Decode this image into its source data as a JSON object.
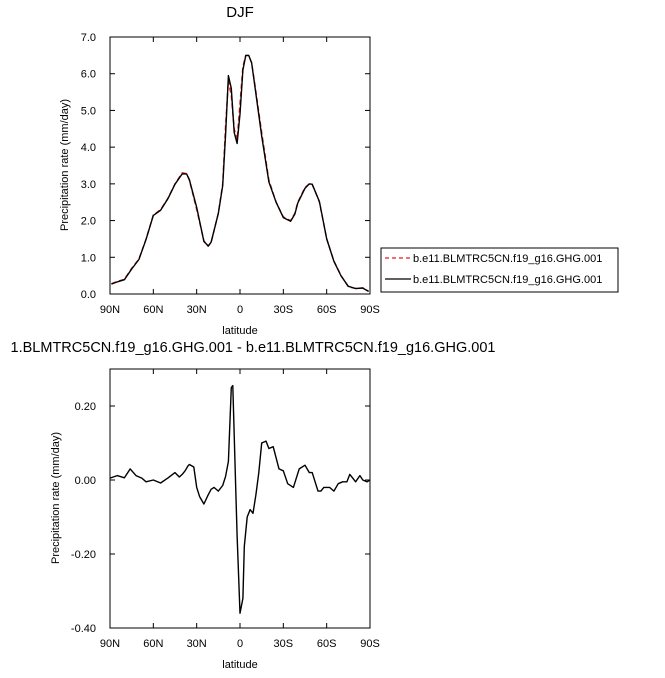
{
  "chart_data": [
    {
      "type": "line",
      "title": "DJF",
      "xlabel": "latitude",
      "ylabel": "Precipitation rate (mm/day)",
      "xlim": [
        90,
        -90
      ],
      "ylim": [
        0,
        7
      ],
      "x_ticks": [
        90,
        60,
        30,
        0,
        -30,
        -60,
        -90
      ],
      "x_tick_labels": [
        "90N",
        "60N",
        "30N",
        "0",
        "30S",
        "60S",
        "90S"
      ],
      "y_ticks": [
        0,
        1,
        2,
        3,
        4,
        5,
        6,
        7
      ],
      "y_tick_labels": [
        "0.0",
        "1.0",
        "2.0",
        "3.0",
        "4.0",
        "5.0",
        "6.0",
        "7.0"
      ],
      "grid": false,
      "legend_position": "right, outside plot",
      "series": [
        {
          "name": "b.e11.BLMTRC5CN.f19_g16.GHG.001",
          "color": "#e31a1c",
          "style": "dashed",
          "x": [
            89,
            85,
            80,
            75,
            70,
            65,
            60,
            55,
            50,
            45,
            40,
            37,
            35,
            30,
            25,
            22,
            20,
            15,
            12,
            10,
            8,
            6,
            4,
            2,
            0,
            -2,
            -4,
            -6,
            -8,
            -10,
            -15,
            -20,
            -25,
            -30,
            -35,
            -38,
            -40,
            -45,
            -48,
            -50,
            -52,
            -55,
            -60,
            -65,
            -70,
            -75,
            -80,
            -85,
            -89
          ],
          "values": [
            0.28,
            0.34,
            0.4,
            0.7,
            0.95,
            1.5,
            2.15,
            2.3,
            2.6,
            3.0,
            3.3,
            3.28,
            3.1,
            2.3,
            1.45,
            1.3,
            1.4,
            2.2,
            3.0,
            4.6,
            5.8,
            5.4,
            4.5,
            4.2,
            5.2,
            6.2,
            6.5,
            6.5,
            6.3,
            5.8,
            4.4,
            3.1,
            2.5,
            2.1,
            2.0,
            2.2,
            2.5,
            2.9,
            3.0,
            2.98,
            2.8,
            2.5,
            1.5,
            0.9,
            0.5,
            0.2,
            0.15,
            0.17,
            0.07
          ]
        },
        {
          "name": "b.e11.BLMTRC5CN.f19_g16.GHG.001",
          "color": "#000000",
          "style": "solid",
          "x": [
            89,
            85,
            80,
            75,
            70,
            65,
            60,
            55,
            50,
            45,
            40,
            37,
            35,
            30,
            25,
            22,
            20,
            15,
            12,
            10,
            8,
            6,
            4,
            2,
            0,
            -2,
            -4,
            -6,
            -8,
            -10,
            -15,
            -20,
            -25,
            -30,
            -35,
            -38,
            -40,
            -45,
            -48,
            -50,
            -52,
            -55,
            -60,
            -65,
            -70,
            -75,
            -80,
            -85,
            -89
          ],
          "values": [
            0.27,
            0.33,
            0.39,
            0.68,
            0.94,
            1.49,
            2.14,
            2.28,
            2.59,
            2.99,
            3.27,
            3.27,
            3.11,
            2.36,
            1.43,
            1.31,
            1.41,
            2.19,
            2.95,
            4.35,
            5.95,
            5.6,
            4.4,
            4.1,
            4.9,
            6.1,
            6.5,
            6.5,
            6.3,
            5.75,
            4.3,
            3.05,
            2.5,
            2.08,
            1.98,
            2.18,
            2.48,
            2.88,
            3.0,
            2.99,
            2.8,
            2.52,
            1.5,
            0.89,
            0.49,
            0.21,
            0.15,
            0.16,
            0.07
          ]
        }
      ]
    },
    {
      "type": "line",
      "title": "1.BLMTRC5CN.f19_g16.GHG.001 - b.e11.BLMTRC5CN.f19_g16.GHG.001",
      "xlabel": "latitude",
      "ylabel": "Precipitation rate (mm/day)",
      "xlim": [
        90,
        -90
      ],
      "ylim": [
        -0.4,
        0.3
      ],
      "x_ticks": [
        90,
        60,
        30,
        0,
        -30,
        -60,
        -90
      ],
      "x_tick_labels": [
        "90N",
        "60N",
        "30N",
        "0",
        "30S",
        "60S",
        "90S"
      ],
      "y_ticks": [
        -0.4,
        -0.2,
        0.0,
        0.2
      ],
      "y_tick_labels": [
        "-0.40",
        "-0.20",
        "0.00",
        "0.20"
      ],
      "grid": false,
      "series": [
        {
          "color": "#000000",
          "style": "solid",
          "x": [
            90,
            85,
            80,
            76,
            72,
            68,
            65,
            60,
            55,
            50,
            45,
            42,
            40,
            38,
            36,
            35,
            32,
            30,
            28,
            25,
            22,
            20,
            18,
            15,
            12,
            10,
            8,
            6,
            5,
            3,
            2,
            0,
            -2,
            -3,
            -5,
            -7,
            -9,
            -11,
            -13,
            -15,
            -18,
            -20,
            -23,
            -25,
            -27,
            -30,
            -33,
            -37,
            -41,
            -45,
            -48,
            -50,
            -54,
            -56,
            -58,
            -62,
            -65,
            -68,
            -71,
            -74,
            -76,
            -78,
            -80,
            -83,
            -85,
            -88,
            -90
          ],
          "values": [
            0.005,
            0.012,
            0.006,
            0.03,
            0.012,
            0.005,
            -0.005,
            0.0,
            -0.008,
            0.005,
            0.02,
            0.008,
            0.015,
            0.025,
            0.038,
            0.042,
            0.035,
            -0.02,
            -0.045,
            -0.065,
            -0.04,
            -0.025,
            -0.02,
            -0.03,
            -0.015,
            0.01,
            0.05,
            0.25,
            0.255,
            -0.02,
            -0.15,
            -0.36,
            -0.32,
            -0.18,
            -0.1,
            -0.08,
            -0.09,
            -0.04,
            0.02,
            0.1,
            0.105,
            0.085,
            0.09,
            0.06,
            0.03,
            0.025,
            -0.01,
            -0.02,
            0.03,
            0.04,
            0.02,
            0.02,
            -0.03,
            -0.03,
            -0.02,
            -0.02,
            -0.03,
            -0.01,
            -0.005,
            -0.005,
            0.015,
            0.005,
            -0.005,
            0.012,
            0.0,
            -0.005,
            0.0
          ]
        }
      ]
    }
  ]
}
